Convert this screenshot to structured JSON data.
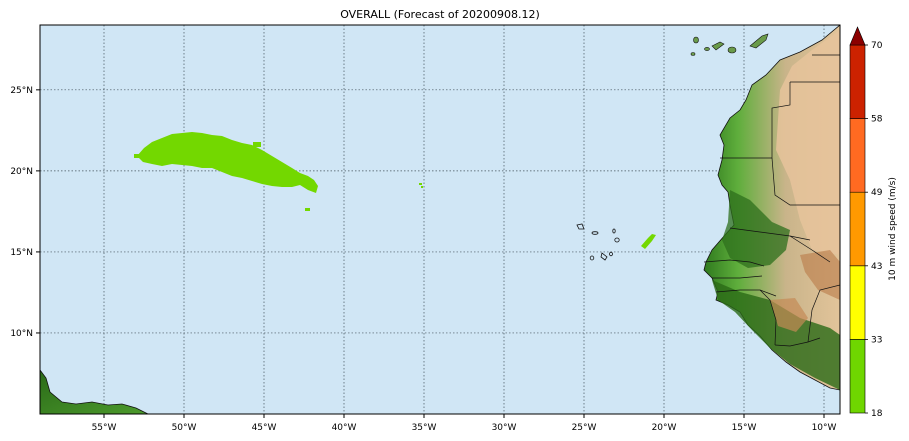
{
  "title": "OVERALL (Forecast of 20200908.12)",
  "map": {
    "lon_range": [
      -59,
      -9
    ],
    "lat_range": [
      5,
      29
    ],
    "lon_ticks": [
      {
        "value": -55,
        "label": "55°W"
      },
      {
        "value": -50,
        "label": "50°W"
      },
      {
        "value": -45,
        "label": "45°W"
      },
      {
        "value": -40,
        "label": "40°W"
      },
      {
        "value": -35,
        "label": "35°W"
      },
      {
        "value": -30,
        "label": "30°W"
      },
      {
        "value": -25,
        "label": "25°W"
      },
      {
        "value": -20,
        "label": "20°W"
      },
      {
        "value": -15,
        "label": "15°W"
      },
      {
        "value": -10,
        "label": "10°W"
      }
    ],
    "lat_ticks": [
      {
        "value": 25,
        "label": "25°N"
      },
      {
        "value": 20,
        "label": "20°N"
      },
      {
        "value": 15,
        "label": "15°N"
      },
      {
        "value": 10,
        "label": "10°N"
      }
    ],
    "gridlines": true,
    "ocean_color": "#d0e6f5"
  },
  "colorbar": {
    "label": "10 m wind speed (m/s)",
    "levels": [
      "18",
      "33",
      "43",
      "49",
      "58",
      "70"
    ],
    "colors": [
      "#6fd600",
      "#ffff00",
      "#ff9900",
      "#ff6a21",
      "#cc2200",
      "#8b0000"
    ]
  }
}
